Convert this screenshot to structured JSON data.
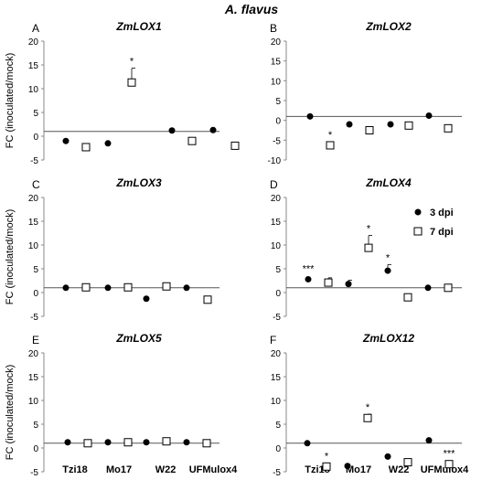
{
  "figure_title": "A. flavus",
  "y_axis_label": "FC (inoculated/mock)",
  "legend": {
    "entries": [
      {
        "label": "3 dpi",
        "marker": "filled-circle"
      },
      {
        "label": "7 dpi",
        "marker": "open-square"
      }
    ]
  },
  "x_axis_categories": [
    "Tzi18",
    "Mo17",
    "W22",
    "UFMulox4"
  ],
  "chart_data": [
    {
      "panel_letter": "A",
      "title": "ZmLOX1",
      "type": "scatter",
      "ylim": [
        -5,
        20
      ],
      "yticks": [
        -5,
        0,
        5,
        10,
        15,
        20
      ],
      "categories": [
        "Tzi18",
        "Mo17",
        "W22",
        "UFMulox4"
      ],
      "series": [
        {
          "name": "3 dpi",
          "values": [
            -1,
            -1.5,
            1.2,
            1.3
          ],
          "errors": [
            0,
            0,
            0,
            0
          ],
          "sig": [
            "",
            "",
            "",
            ""
          ]
        },
        {
          "name": "7 dpi",
          "values": [
            -2.3,
            11.3,
            -1,
            -2
          ],
          "errors": [
            0,
            3,
            0,
            0
          ],
          "sig": [
            "",
            "*",
            "",
            ""
          ]
        }
      ]
    },
    {
      "panel_letter": "B",
      "title": "ZmLOX2",
      "type": "scatter",
      "ylim": [
        -10,
        20
      ],
      "yticks": [
        -10,
        -5,
        0,
        5,
        10,
        15,
        20
      ],
      "categories": [
        "Tzi18",
        "Mo17",
        "W22",
        "UFMulox4"
      ],
      "series": [
        {
          "name": "3 dpi",
          "values": [
            1,
            -1,
            -1,
            1.2
          ],
          "errors": [
            0,
            0,
            0,
            0
          ],
          "sig": [
            "",
            "",
            "",
            ""
          ]
        },
        {
          "name": "7 dpi",
          "values": [
            -6.3,
            -2.5,
            -1.3,
            -2
          ],
          "errors": [
            0,
            0,
            0,
            0
          ],
          "sig": [
            "*",
            "",
            "",
            ""
          ]
        }
      ]
    },
    {
      "panel_letter": "C",
      "title": "ZmLOX3",
      "type": "scatter",
      "ylim": [
        -5,
        20
      ],
      "yticks": [
        -5,
        0,
        5,
        10,
        15,
        20
      ],
      "categories": [
        "Tzi18",
        "Mo17",
        "W22",
        "UFMulox4"
      ],
      "series": [
        {
          "name": "3 dpi",
          "values": [
            1,
            1,
            -1.3,
            1
          ],
          "errors": [
            0,
            0,
            0,
            0
          ],
          "sig": [
            "",
            "",
            "",
            ""
          ]
        },
        {
          "name": "7 dpi",
          "values": [
            1.1,
            1.1,
            1.3,
            -1.5
          ],
          "errors": [
            0,
            0,
            0,
            0
          ],
          "sig": [
            "",
            "",
            "",
            ""
          ]
        }
      ]
    },
    {
      "panel_letter": "D",
      "title": "ZmLOX4",
      "type": "scatter",
      "ylim": [
        -5,
        20
      ],
      "yticks": [
        -5,
        0,
        5,
        10,
        15,
        20
      ],
      "categories": [
        "Tzi18",
        "Mo17",
        "W22",
        "UFMulox4"
      ],
      "series": [
        {
          "name": "3 dpi",
          "values": [
            2.8,
            1.8,
            4.6,
            1
          ],
          "errors": [
            0,
            0.8,
            1.3,
            0
          ],
          "sig": [
            "***",
            "",
            "*",
            ""
          ]
        },
        {
          "name": "7 dpi",
          "values": [
            2.1,
            9.4,
            -1,
            1
          ],
          "errors": [
            1,
            2.6,
            0,
            0
          ],
          "sig": [
            "",
            "*",
            "",
            ""
          ]
        }
      ]
    },
    {
      "panel_letter": "E",
      "title": "ZmLOX5",
      "type": "scatter",
      "ylim": [
        -5,
        20
      ],
      "yticks": [
        -5,
        0,
        5,
        10,
        15,
        20
      ],
      "categories": [
        "Tzi18",
        "Mo17",
        "W22",
        "UFMulox4"
      ],
      "series": [
        {
          "name": "3 dpi",
          "values": [
            1.2,
            1.2,
            1.2,
            1.2
          ],
          "errors": [
            0,
            0,
            0,
            0
          ],
          "sig": [
            "",
            "",
            "",
            ""
          ]
        },
        {
          "name": "7 dpi",
          "values": [
            1,
            1.2,
            1.4,
            1
          ],
          "errors": [
            0,
            0,
            0,
            0
          ],
          "sig": [
            "",
            "",
            "",
            ""
          ]
        }
      ]
    },
    {
      "panel_letter": "F",
      "title": "ZmLOX12",
      "type": "scatter",
      "ylim": [
        -5,
        20
      ],
      "yticks": [
        -5,
        0,
        5,
        10,
        15,
        20
      ],
      "categories": [
        "Tzi18",
        "Mo17",
        "W22",
        "UFMulox4"
      ],
      "series": [
        {
          "name": "3 dpi",
          "values": [
            1,
            -3.8,
            -1.8,
            1.6
          ],
          "errors": [
            0,
            0,
            0,
            0
          ],
          "sig": [
            "",
            "",
            "",
            ""
          ]
        },
        {
          "name": "7 dpi",
          "values": [
            -3.9,
            6.3,
            -3,
            -3.4
          ],
          "errors": [
            0,
            0.8,
            0,
            0
          ],
          "sig": [
            "*",
            "*",
            "",
            "***"
          ]
        }
      ]
    }
  ]
}
